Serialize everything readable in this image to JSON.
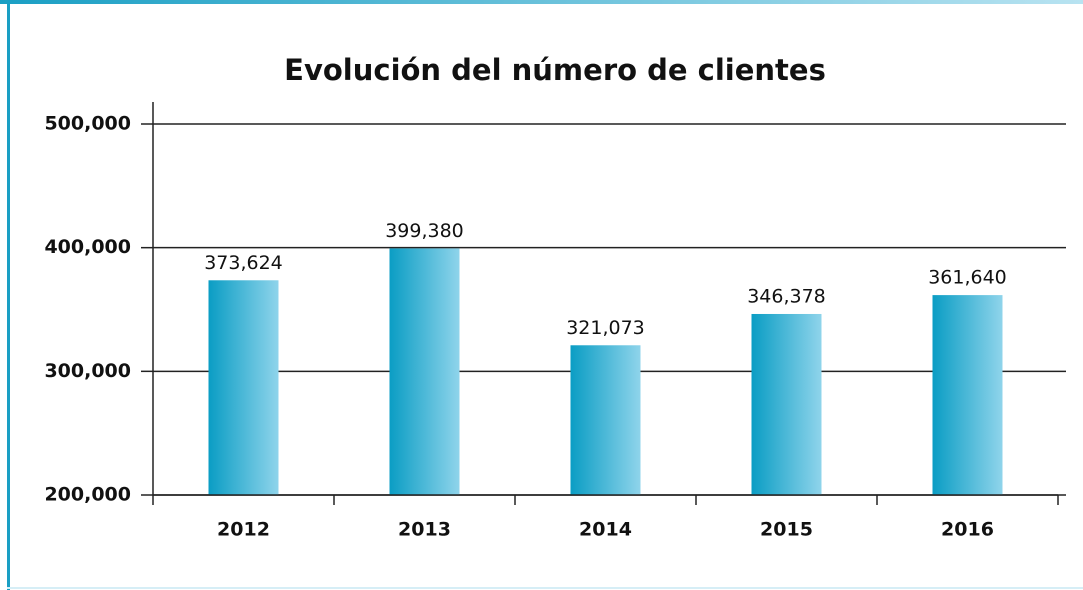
{
  "chart_data": {
    "type": "bar",
    "title": "Evolución del número de clientes",
    "categories": [
      "2012",
      "2013",
      "2014",
      "2015",
      "2016"
    ],
    "values": [
      373624,
      399380,
      321073,
      346378,
      361640
    ],
    "value_labels": [
      "373,624",
      "399,380",
      "321,073",
      "346,378",
      "361,640"
    ],
    "gradient": [
      "#0a9dc4",
      "#8fd4eb"
    ],
    "ylim": [
      200000,
      500000
    ],
    "yticks": [
      {
        "value": 200000,
        "label": "200,000"
      },
      {
        "value": 300000,
        "label": "300,000"
      },
      {
        "value": 400000,
        "label": "400,000"
      },
      {
        "value": 500000,
        "label": "500,000"
      }
    ],
    "grid": true
  }
}
